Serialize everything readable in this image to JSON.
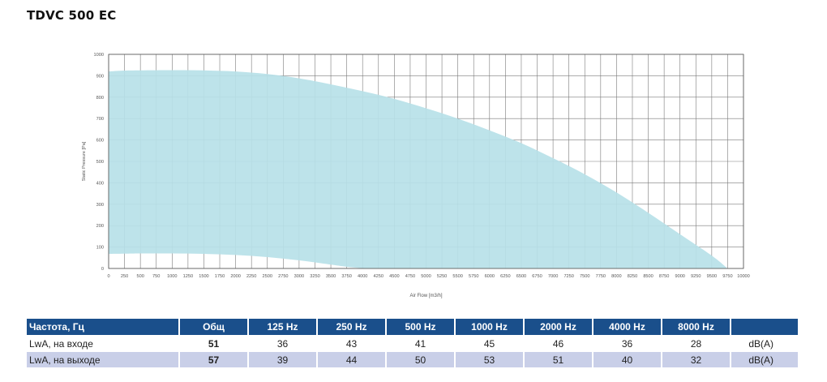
{
  "title": "TDVC 500 EC",
  "chart_data": {
    "type": "area",
    "title": "TDVC 500 EC",
    "xlabel": "Air Flow [m3/h]",
    "ylabel": "Static Pressure [Pa]",
    "xlim": [
      0,
      10000
    ],
    "ylim": [
      0,
      1000
    ],
    "x_ticks": [
      "0",
      "250",
      "500",
      "750",
      "1000",
      "1250",
      "1500",
      "1750",
      "2000",
      "2250",
      "2500",
      "2750",
      "3000",
      "3250",
      "3500",
      "3750",
      "4000",
      "4250",
      "4500",
      "4750",
      "5000",
      "5250",
      "5500",
      "5750",
      "6000",
      "6250",
      "6500",
      "6750",
      "7000",
      "7250",
      "7500",
      "7750",
      "8000",
      "8250",
      "8500",
      "8750",
      "9000",
      "9250",
      "9500",
      "9750",
      "10000"
    ],
    "y_ticks": [
      "0",
      "100",
      "200",
      "300",
      "400",
      "500",
      "600",
      "700",
      "800",
      "900",
      "1000"
    ],
    "grid": true,
    "color": "#b7e1e8",
    "upper_curve": {
      "x": [
        0,
        250,
        500,
        1000,
        1500,
        2000,
        2500,
        3000,
        3500,
        4000,
        4500,
        5000,
        5500,
        6000,
        6500,
        7000,
        7500,
        8000,
        8500,
        9000,
        9500,
        9750
      ],
      "y": [
        920,
        924,
        925,
        926,
        925,
        920,
        908,
        888,
        860,
        828,
        792,
        748,
        700,
        645,
        585,
        515,
        440,
        355,
        260,
        160,
        60,
        0
      ]
    },
    "lower_curve": {
      "x": [
        0,
        250,
        500,
        1000,
        1500,
        2000,
        2500,
        3000,
        3500,
        3800,
        4050
      ],
      "y": [
        68,
        69,
        70,
        70,
        68,
        63,
        53,
        38,
        18,
        6,
        0
      ]
    }
  },
  "table": {
    "headers": [
      "Частота, Гц",
      "Общ",
      "125 Hz",
      "250 Hz",
      "500 Hz",
      "1000 Hz",
      "2000 Hz",
      "4000 Hz",
      "8000 Hz",
      ""
    ],
    "rows": [
      {
        "label": "LwA, на входе",
        "total": "51",
        "values": [
          "36",
          "43",
          "41",
          "45",
          "46",
          "36",
          "28"
        ],
        "unit": "dB(A)"
      },
      {
        "label": "LwA, на выходе",
        "total": "57",
        "values": [
          "39",
          "44",
          "50",
          "53",
          "51",
          "40",
          "32"
        ],
        "unit": "dB(A)"
      }
    ]
  }
}
